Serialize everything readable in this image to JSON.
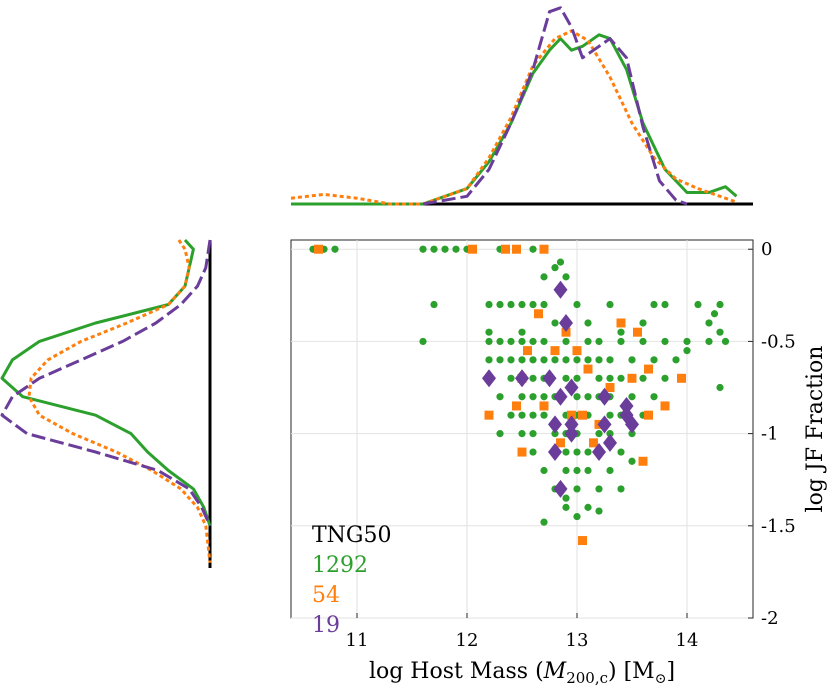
{
  "chart_data": {
    "type": "scatter",
    "title": "",
    "xlabel_parts": [
      "log Host Mass (",
      "M",
      "200,c",
      ") [M",
      "⊙",
      "]"
    ],
    "ylabel": "log JF Fraction",
    "xlim": [
      10.4,
      14.6
    ],
    "ylim": [
      -2,
      0.05
    ],
    "xticks": [
      11,
      12,
      13,
      14
    ],
    "yticks": [
      0,
      -0.5,
      -1,
      -1.5,
      -2
    ],
    "ytick_labels": [
      "0",
      "-0.5",
      "-1",
      "-1.5",
      "-2"
    ],
    "grid": true,
    "legend": {
      "title": "TNG50",
      "placement": "bottom-left",
      "entries": [
        {
          "label": "1292",
          "color": "#2ca02c"
        },
        {
          "label": "54",
          "color": "#ff7f0e"
        },
        {
          "label": "19",
          "color": "#6a3d9a"
        }
      ]
    },
    "series": [
      {
        "name": "1292",
        "marker": "circle",
        "color": "#2ca02c",
        "note": "1292 galaxies; representative sample of points shown",
        "points": [
          [
            10.6,
            0
          ],
          [
            10.7,
            0
          ],
          [
            10.8,
            0
          ],
          [
            11.6,
            0
          ],
          [
            11.7,
            0
          ],
          [
            11.8,
            0
          ],
          [
            11.9,
            0
          ],
          [
            12.0,
            0
          ],
          [
            12.3,
            0
          ],
          [
            12.6,
            0
          ],
          [
            12.7,
            -0.15
          ],
          [
            12.8,
            -0.1
          ],
          [
            12.9,
            -0.15
          ],
          [
            12.85,
            -0.07
          ],
          [
            11.7,
            -0.3
          ],
          [
            12.2,
            -0.3
          ],
          [
            12.3,
            -0.3
          ],
          [
            12.4,
            -0.3
          ],
          [
            12.5,
            -0.3
          ],
          [
            12.6,
            -0.3
          ],
          [
            12.7,
            -0.3
          ],
          [
            13.0,
            -0.3
          ],
          [
            13.3,
            -0.3
          ],
          [
            13.7,
            -0.3
          ],
          [
            13.8,
            -0.3
          ],
          [
            14.1,
            -0.3
          ],
          [
            14.3,
            -0.3
          ],
          [
            14.25,
            -0.35
          ],
          [
            11.6,
            -0.5
          ],
          [
            12.2,
            -0.45
          ],
          [
            12.5,
            -0.45
          ],
          [
            12.8,
            -0.4
          ],
          [
            13.1,
            -0.4
          ],
          [
            13.4,
            -0.45
          ],
          [
            13.6,
            -0.4
          ],
          [
            14.2,
            -0.4
          ],
          [
            14.3,
            -0.45
          ],
          [
            14.35,
            -0.5
          ],
          [
            12.2,
            -0.5
          ],
          [
            12.3,
            -0.5
          ],
          [
            12.4,
            -0.5
          ],
          [
            12.5,
            -0.5
          ],
          [
            12.6,
            -0.5
          ],
          [
            12.7,
            -0.5
          ],
          [
            12.9,
            -0.5
          ],
          [
            13.1,
            -0.5
          ],
          [
            13.2,
            -0.5
          ],
          [
            13.4,
            -0.5
          ],
          [
            13.6,
            -0.5
          ],
          [
            13.8,
            -0.5
          ],
          [
            14.0,
            -0.5
          ],
          [
            14.2,
            -0.5
          ],
          [
            12.2,
            -0.6
          ],
          [
            12.3,
            -0.6
          ],
          [
            12.4,
            -0.6
          ],
          [
            12.5,
            -0.6
          ],
          [
            12.6,
            -0.6
          ],
          [
            12.7,
            -0.6
          ],
          [
            12.8,
            -0.6
          ],
          [
            12.9,
            -0.6
          ],
          [
            13.0,
            -0.6
          ],
          [
            13.1,
            -0.6
          ],
          [
            13.2,
            -0.6
          ],
          [
            13.3,
            -0.6
          ],
          [
            13.5,
            -0.6
          ],
          [
            13.7,
            -0.6
          ],
          [
            13.9,
            -0.6
          ],
          [
            14.0,
            -0.55
          ],
          [
            14.3,
            -0.75
          ],
          [
            12.2,
            -0.7
          ],
          [
            12.4,
            -0.7
          ],
          [
            12.5,
            -0.7
          ],
          [
            12.6,
            -0.7
          ],
          [
            12.7,
            -0.7
          ],
          [
            12.9,
            -0.7
          ],
          [
            13.0,
            -0.7
          ],
          [
            13.2,
            -0.7
          ],
          [
            13.3,
            -0.7
          ],
          [
            13.4,
            -0.7
          ],
          [
            13.6,
            -0.7
          ],
          [
            13.8,
            -0.7
          ],
          [
            12.3,
            -0.8
          ],
          [
            12.5,
            -0.8
          ],
          [
            12.6,
            -0.8
          ],
          [
            12.7,
            -0.8
          ],
          [
            12.8,
            -0.8
          ],
          [
            13.0,
            -0.8
          ],
          [
            13.1,
            -0.8
          ],
          [
            13.2,
            -0.8
          ],
          [
            13.3,
            -0.8
          ],
          [
            13.5,
            -0.8
          ],
          [
            13.7,
            -0.8
          ],
          [
            12.4,
            -0.9
          ],
          [
            12.5,
            -0.9
          ],
          [
            12.6,
            -0.9
          ],
          [
            12.7,
            -0.9
          ],
          [
            12.9,
            -0.9
          ],
          [
            13.0,
            -0.9
          ],
          [
            13.1,
            -0.9
          ],
          [
            13.3,
            -0.9
          ],
          [
            13.4,
            -0.9
          ],
          [
            13.6,
            -0.9
          ],
          [
            12.3,
            -1.0
          ],
          [
            12.5,
            -1.0
          ],
          [
            12.6,
            -1.0
          ],
          [
            12.8,
            -1.0
          ],
          [
            12.9,
            -1.0
          ],
          [
            13.0,
            -1.0
          ],
          [
            13.2,
            -1.0
          ],
          [
            13.3,
            -1.0
          ],
          [
            13.5,
            -1.0
          ],
          [
            12.6,
            -1.1
          ],
          [
            12.8,
            -1.1
          ],
          [
            12.9,
            -1.1
          ],
          [
            13.0,
            -1.1
          ],
          [
            13.1,
            -1.1
          ],
          [
            13.2,
            -1.1
          ],
          [
            13.4,
            -1.1
          ],
          [
            12.7,
            -1.2
          ],
          [
            12.9,
            -1.2
          ],
          [
            13.0,
            -1.2
          ],
          [
            13.1,
            -1.2
          ],
          [
            13.3,
            -1.2
          ],
          [
            13.5,
            -1.15
          ],
          [
            12.8,
            -1.3
          ],
          [
            12.9,
            -1.35
          ],
          [
            13.0,
            -1.3
          ],
          [
            13.2,
            -1.3
          ],
          [
            13.4,
            -1.3
          ],
          [
            12.9,
            -1.4
          ],
          [
            13.0,
            -1.45
          ],
          [
            13.1,
            -1.4
          ],
          [
            12.7,
            -1.48
          ],
          [
            13.2,
            -1.42
          ]
        ]
      },
      {
        "name": "54",
        "marker": "square",
        "color": "#ff7f0e",
        "points": [
          [
            10.65,
            0
          ],
          [
            12.05,
            0
          ],
          [
            12.35,
            0
          ],
          [
            12.45,
            0
          ],
          [
            12.7,
            0
          ],
          [
            12.65,
            -0.35
          ],
          [
            13.4,
            -0.4
          ],
          [
            13.55,
            -0.45
          ],
          [
            12.9,
            -0.45
          ],
          [
            12.55,
            -0.55
          ],
          [
            12.8,
            -0.55
          ],
          [
            13.0,
            -0.55
          ],
          [
            12.5,
            -0.7
          ],
          [
            13.1,
            -0.65
          ],
          [
            13.3,
            -0.75
          ],
          [
            13.5,
            -0.7
          ],
          [
            13.65,
            -0.65
          ],
          [
            13.95,
            -0.7
          ],
          [
            12.2,
            -0.9
          ],
          [
            12.45,
            -0.85
          ],
          [
            12.7,
            -0.85
          ],
          [
            12.95,
            -0.9
          ],
          [
            13.05,
            -0.9
          ],
          [
            13.2,
            -0.95
          ],
          [
            13.65,
            -0.9
          ],
          [
            13.8,
            -0.85
          ],
          [
            12.5,
            -1.1
          ],
          [
            12.85,
            -1.05
          ],
          [
            13.15,
            -1.05
          ],
          [
            13.6,
            -1.15
          ],
          [
            13.05,
            -1.58
          ]
        ]
      },
      {
        "name": "19",
        "marker": "diamond",
        "color": "#6a3d9a",
        "points": [
          [
            12.85,
            -0.22
          ],
          [
            12.9,
            -0.4
          ],
          [
            12.2,
            -0.7
          ],
          [
            12.5,
            -0.7
          ],
          [
            12.75,
            -0.7
          ],
          [
            12.95,
            -0.75
          ],
          [
            12.85,
            -0.8
          ],
          [
            13.25,
            -0.8
          ],
          [
            13.45,
            -0.85
          ],
          [
            12.8,
            -0.95
          ],
          [
            12.95,
            -0.95
          ],
          [
            13.25,
            -0.95
          ],
          [
            13.45,
            -0.9
          ],
          [
            13.5,
            -0.95
          ],
          [
            12.95,
            -1.0
          ],
          [
            13.3,
            -1.05
          ],
          [
            13.2,
            -1.1
          ],
          [
            12.8,
            -1.1
          ],
          [
            12.85,
            -1.3
          ]
        ]
      }
    ],
    "kde_x": {
      "xrange": [
        10.4,
        14.6
      ],
      "series": [
        {
          "name": "1292",
          "color": "#2ca02c",
          "dash": "solid",
          "x": [
            10.4,
            11.0,
            11.6,
            12.0,
            12.2,
            12.4,
            12.6,
            12.75,
            12.85,
            12.95,
            13.05,
            13.2,
            13.3,
            13.45,
            13.6,
            13.8,
            14.0,
            14.2,
            14.35,
            14.45
          ],
          "density": [
            0.0,
            0.0,
            0.0,
            0.08,
            0.22,
            0.42,
            0.68,
            0.8,
            0.86,
            0.8,
            0.82,
            0.88,
            0.86,
            0.7,
            0.42,
            0.18,
            0.06,
            0.06,
            0.09,
            0.04
          ]
        },
        {
          "name": "54",
          "color": "#ff7f0e",
          "dash": "dashed",
          "x": [
            10.4,
            10.7,
            11.0,
            11.3,
            11.6,
            12.0,
            12.2,
            12.4,
            12.6,
            12.8,
            12.95,
            13.1,
            13.3,
            13.5,
            13.7,
            13.9,
            14.1,
            14.3,
            14.45
          ],
          "density": [
            0.03,
            0.05,
            0.03,
            0.0,
            0.0,
            0.08,
            0.24,
            0.45,
            0.72,
            0.86,
            0.9,
            0.85,
            0.66,
            0.42,
            0.24,
            0.13,
            0.08,
            0.04,
            0.01
          ]
        },
        {
          "name": "19",
          "color": "#6a3d9a",
          "dash": "longdash",
          "x": [
            11.6,
            12.0,
            12.2,
            12.4,
            12.6,
            12.75,
            12.85,
            12.95,
            13.05,
            13.15,
            13.3,
            13.45,
            13.6,
            13.75,
            13.9,
            14.0
          ],
          "density": [
            0.0,
            0.04,
            0.18,
            0.42,
            0.7,
            1.0,
            1.02,
            0.92,
            0.76,
            0.8,
            0.86,
            0.76,
            0.4,
            0.12,
            0.02,
            0.0
          ]
        }
      ]
    },
    "kde_y": {
      "yrange": [
        -1.75,
        0.05
      ],
      "series": [
        {
          "name": "1292",
          "color": "#2ca02c",
          "dash": "solid",
          "y": [
            0.05,
            0.0,
            -0.1,
            -0.2,
            -0.3,
            -0.4,
            -0.5,
            -0.6,
            -0.7,
            -0.8,
            -0.9,
            -1.0,
            -1.1,
            -1.2,
            -1.3,
            -1.4,
            -1.5
          ],
          "density": [
            0.12,
            0.08,
            0.1,
            0.12,
            0.2,
            0.55,
            0.82,
            0.95,
            1.0,
            0.9,
            0.55,
            0.38,
            0.3,
            0.2,
            0.08,
            0.03,
            0.0
          ]
        },
        {
          "name": "54",
          "color": "#ff7f0e",
          "dash": "dashed",
          "y": [
            0.05,
            0.0,
            -0.1,
            -0.2,
            -0.3,
            -0.4,
            -0.5,
            -0.6,
            -0.7,
            -0.8,
            -0.9,
            -1.0,
            -1.1,
            -1.2,
            -1.3,
            -1.4,
            -1.5,
            -1.6,
            -1.7
          ],
          "density": [
            0.15,
            0.12,
            0.1,
            0.12,
            0.2,
            0.4,
            0.62,
            0.78,
            0.86,
            0.87,
            0.82,
            0.66,
            0.45,
            0.28,
            0.14,
            0.06,
            0.02,
            0.01,
            0.0
          ]
        },
        {
          "name": "19",
          "color": "#6a3d9a",
          "dash": "longdash",
          "y": [
            0.05,
            -0.1,
            -0.2,
            -0.3,
            -0.4,
            -0.5,
            -0.6,
            -0.7,
            -0.8,
            -0.9,
            -1.0,
            -1.1,
            -1.2,
            -1.3,
            -1.4,
            -1.5
          ],
          "density": [
            0.0,
            0.02,
            0.06,
            0.14,
            0.26,
            0.42,
            0.62,
            0.82,
            0.95,
            1.0,
            0.88,
            0.55,
            0.25,
            0.1,
            0.04,
            0.0
          ]
        }
      ]
    }
  }
}
